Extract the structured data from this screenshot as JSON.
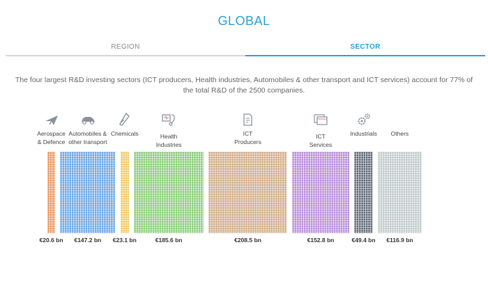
{
  "header": {
    "title": "GLOBAL"
  },
  "tabs": [
    {
      "label": "REGION",
      "active": false
    },
    {
      "label": "SECTOR",
      "active": true
    }
  ],
  "description": "The four largest R&D investing sectors (ICT producers, Health industries, Automobiles & other transport and ICT services) account for 77% of the total R&D of the 2500 companies.",
  "colors": {
    "accent": "#2a9fd8",
    "tab_inactive_line": "#d6d6d6"
  },
  "chart_data": {
    "type": "bar",
    "unit": "bn",
    "categories": [
      "Aerospace\n& Defence",
      "Automobiles &\nother transport",
      "Chemicals",
      "Health\nIndustries",
      "ICT\nProducers",
      "ICT\nServices",
      "Industrials",
      "Others"
    ],
    "values": [
      20.6,
      147.2,
      23.1,
      185.6,
      208.5,
      152.8,
      49.4,
      116.9
    ],
    "value_labels": [
      "€20.6 bn",
      "€147.2 bn",
      "€23.1 bn",
      "€185.6 bn",
      "€208.5 bn",
      "€152.8 bn",
      "€49.4 bn",
      "€116.9 bn"
    ],
    "colors": [
      "#e8884a",
      "#5b9be0",
      "#f0c24e",
      "#7cc66a",
      "#c9a07a",
      "#b07ed4",
      "#4f5868",
      "#b9c3c7"
    ],
    "icons": [
      "plane-icon",
      "car-icon",
      "flask-icon",
      "stethoscope-icon",
      "document-icon",
      "browser-window-icon",
      "gears-icon",
      ""
    ]
  }
}
